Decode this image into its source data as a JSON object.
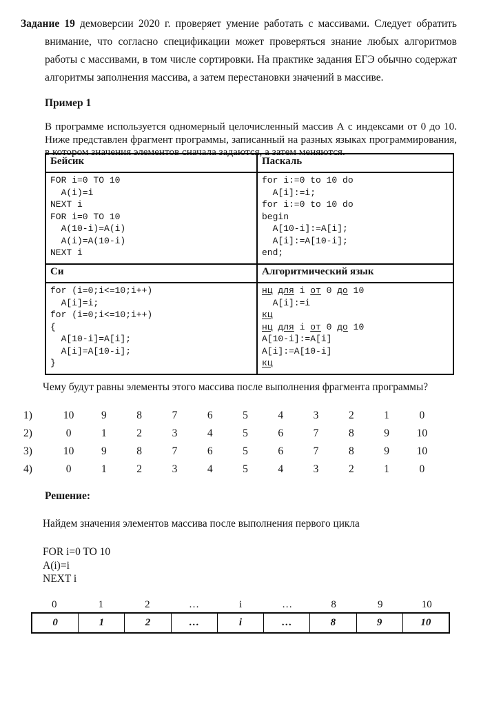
{
  "colors": {
    "text": "#161616",
    "border": "#0a0a0a",
    "background": "#ffffff"
  },
  "intro": {
    "lead": "Задание 19",
    "text": " демоверсии 2020 г. проверяет умение работать с массивами. Следует обратить внимание, что согласно спецификации может проверяться знание любых алгоритмов работы с массивами, в том числе сортировки. На практике задания ЕГЭ обычно содержат алгоритмы заполнения массива, а затем перестановки значений в массиве."
  },
  "example": {
    "heading": "Пример 1",
    "text": "В программе используется одномерный целочисленный массив А с индексами от 0 до 10. Ниже представлен фрагмент программы, записанный на разных языках программирования, в котором значения элементов сначала задаются, а затем меняются."
  },
  "code_table": {
    "basic": {
      "header": "Бейсик",
      "lines": [
        "FOR i=0 TO 10",
        "  A(i)=i",
        "NEXT i",
        "FOR i=0 TO 10",
        "  A(10-i)=A(i)",
        "  A(i)=A(10-i)",
        "NEXT i"
      ]
    },
    "pascal": {
      "header": "Паскаль",
      "lines": [
        "for i:=0 to 10 do",
        "  A[i]:=i;",
        "for i:=0 to 10 do",
        "begin",
        "  A[10-i]:=A[i];",
        "  A[i]:=A[10-i];",
        "end;"
      ]
    },
    "c": {
      "header": "Си",
      "lines": [
        "for (i=0;i<=10;i++)",
        "  A[i]=i;",
        "for (i=0;i<=10;i++)",
        "{",
        "  A[10-i]=A[i];",
        "  A[i]=A[10-i];",
        "}"
      ]
    },
    "algo": {
      "header": "Алгоритмический язык",
      "lines": [
        [
          {
            "t": "нц",
            "u": 1
          },
          {
            "t": " ",
            "u": 0
          },
          {
            "t": "для",
            "u": 1
          },
          {
            "t": " i ",
            "u": 0
          },
          {
            "t": "от",
            "u": 1
          },
          {
            "t": " 0 ",
            "u": 0
          },
          {
            "t": "до",
            "u": 1
          },
          {
            "t": " 10",
            "u": 0
          }
        ],
        [
          {
            "t": "  A[i]:=i",
            "u": 0
          }
        ],
        [
          {
            "t": "кц",
            "u": 1
          }
        ],
        [
          {
            "t": "нц",
            "u": 1
          },
          {
            "t": " ",
            "u": 0
          },
          {
            "t": "для",
            "u": 1
          },
          {
            "t": " i ",
            "u": 0
          },
          {
            "t": "от",
            "u": 1
          },
          {
            "t": " 0 ",
            "u": 0
          },
          {
            "t": "до",
            "u": 1
          },
          {
            "t": " 10",
            "u": 0
          }
        ],
        [
          {
            "t": "A[10-i]:=A[i]",
            "u": 0
          }
        ],
        [
          {
            "t": "A[i]:=A[10-i]",
            "u": 0
          }
        ],
        [
          {
            "t": "кц",
            "u": 1
          }
        ]
      ]
    }
  },
  "question": "Чему будут равны элементы этого массива после выполнения фрагмента программы?",
  "options": [
    {
      "label": "1)",
      "values": [
        "10",
        "9",
        "8",
        "7",
        "6",
        "5",
        "4",
        "3",
        "2",
        "1",
        "0"
      ]
    },
    {
      "label": "2)",
      "values": [
        "0",
        "1",
        "2",
        "3",
        "4",
        "5",
        "6",
        "7",
        "8",
        "9",
        "10"
      ]
    },
    {
      "label": "3)",
      "values": [
        "10",
        "9",
        "8",
        "7",
        "6",
        "5",
        "6",
        "7",
        "8",
        "9",
        "10"
      ]
    },
    {
      "label": "4)",
      "values": [
        "0",
        "1",
        "2",
        "3",
        "4",
        "5",
        "4",
        "3",
        "2",
        "1",
        "0"
      ]
    }
  ],
  "solution": {
    "heading": "Решение:",
    "intro": "Найдем значения элементов массива после выполнения первого цикла",
    "code": [
      "FOR i=0 TO 10",
      "A(i)=i",
      "NEXT i"
    ],
    "array": {
      "indices": [
        "0",
        "1",
        "2",
        "…",
        "i",
        "…",
        "8",
        "9",
        "10"
      ],
      "values": [
        "0",
        "1",
        "2",
        "…",
        "i",
        "…",
        "8",
        "9",
        "10"
      ]
    }
  }
}
